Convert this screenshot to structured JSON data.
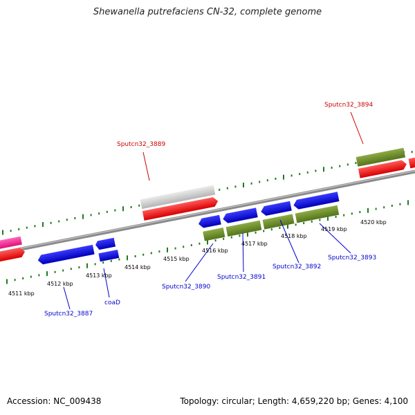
{
  "title": "Shewanella putrefaciens CN-32, complete genome",
  "footer": {
    "accession": "Accession: NC_009438",
    "summary": "Topology: circular; Length: 4,659,220 bp; Genes: 4,100"
  },
  "scale": {
    "ticks": [
      {
        "label": "4511 kbp"
      },
      {
        "label": "4512 kbp"
      },
      {
        "label": "4513 kbp"
      },
      {
        "label": "4514 kbp"
      },
      {
        "label": "4515 kbp"
      },
      {
        "label": "4516 kbp"
      },
      {
        "label": "4517 kbp"
      },
      {
        "label": "4518 kbp"
      },
      {
        "label": "4519 kbp"
      },
      {
        "label": "4520 kbp"
      }
    ]
  },
  "labels": {
    "red": [
      {
        "name": "Sputcn32_3889"
      },
      {
        "name": "Sputcn32_3894"
      }
    ],
    "blue": [
      {
        "name": "Sputcn32_3887"
      },
      {
        "name": "coaD"
      },
      {
        "name": "Sputcn32_3890"
      },
      {
        "name": "Sputcn32_3891"
      },
      {
        "name": "Sputcn32_3892"
      },
      {
        "name": "Sputcn32_3893"
      }
    ]
  },
  "colors": {
    "backbone": "#8a8a8a",
    "cds": "#ff0000",
    "gene_forward": "#c8c8c8",
    "gene_olive": "#6b8e23",
    "gene_blue": "#0000ee",
    "gene_pink": "#ff3399",
    "tick": "#1e7a1e",
    "label_red": "#cc0000",
    "label_blue": "#0000cc"
  }
}
